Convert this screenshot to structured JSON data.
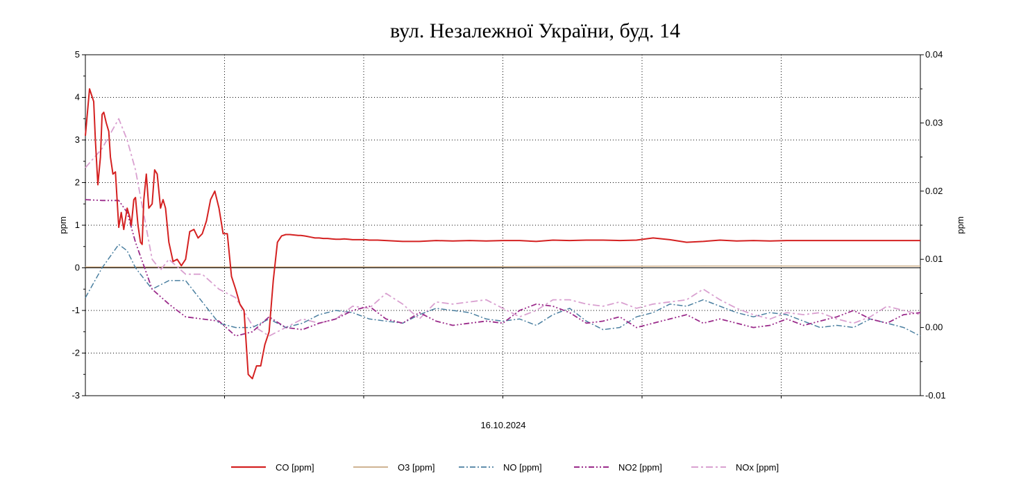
{
  "chart_data": {
    "type": "line",
    "title": "вул. Незалежної України, буд. 14",
    "xlabel": "16.10.2024",
    "ylabel_left": "ppm",
    "ylabel_right": "ppm",
    "y_left": {
      "min": -3,
      "max": 5,
      "ticks": [
        "5",
        "4",
        "3",
        "2",
        "1",
        "0",
        "-1",
        "-2",
        "-3"
      ]
    },
    "y_right": {
      "min": -0.01,
      "max": 0.04,
      "ticks": [
        "0.04",
        "0.03",
        "0.02",
        "0.01",
        "0.00",
        "-0.01"
      ]
    },
    "grid": true,
    "legend_position": "bottom",
    "colors": {
      "CO": "#d42020",
      "O3": "#c8a882",
      "NO": "#4a7fa0",
      "NO2": "#9a2a8a",
      "NOx": "#d9a0d0"
    },
    "series": [
      {
        "name": "CO [ppm]",
        "axis": "left",
        "x": [
          0,
          0.005,
          0.01,
          0.012,
          0.015,
          0.018,
          0.02,
          0.022,
          0.025,
          0.028,
          0.03,
          0.033,
          0.036,
          0.04,
          0.043,
          0.046,
          0.05,
          0.053,
          0.055,
          0.058,
          0.06,
          0.063,
          0.066,
          0.068,
          0.07,
          0.073,
          0.076,
          0.08,
          0.083,
          0.086,
          0.09,
          0.093,
          0.096,
          0.1,
          0.105,
          0.11,
          0.115,
          0.12,
          0.125,
          0.13,
          0.135,
          0.14,
          0.145,
          0.15,
          0.155,
          0.16,
          0.165,
          0.17,
          0.175,
          0.18,
          0.185,
          0.19,
          0.195,
          0.2,
          0.205,
          0.21,
          0.215,
          0.22,
          0.225,
          0.23,
          0.235,
          0.24,
          0.245,
          0.25,
          0.255,
          0.258,
          0.262,
          0.265,
          0.27,
          0.275,
          0.28,
          0.285,
          0.29,
          0.295,
          0.3,
          0.305,
          0.31,
          0.315,
          0.32,
          0.325,
          0.33,
          0.335,
          0.34,
          0.35,
          0.36,
          0.38,
          0.4,
          0.42,
          0.44,
          0.46,
          0.48,
          0.5,
          0.52,
          0.54,
          0.56,
          0.58,
          0.6,
          0.62,
          0.64,
          0.66,
          0.68,
          0.7,
          0.72,
          0.74,
          0.76,
          0.78,
          0.8,
          0.82,
          0.84,
          0.86,
          0.88,
          0.9,
          0.92,
          0.94,
          0.96,
          0.98,
          1.0
        ],
        "values": [
          3.1,
          4.2,
          3.9,
          3.0,
          1.95,
          2.6,
          3.6,
          3.65,
          3.4,
          3.2,
          2.6,
          2.2,
          2.25,
          0.95,
          1.3,
          0.9,
          1.4,
          1.2,
          1.0,
          1.6,
          1.65,
          1.0,
          0.6,
          0.55,
          1.6,
          2.2,
          1.4,
          1.5,
          2.3,
          2.2,
          1.4,
          1.6,
          1.4,
          0.6,
          0.15,
          0.2,
          0.05,
          0.2,
          0.85,
          0.9,
          0.7,
          0.8,
          1.1,
          1.6,
          1.8,
          1.4,
          0.8,
          0.8,
          -0.2,
          -0.5,
          -0.85,
          -1.0,
          -2.5,
          -2.6,
          -2.3,
          -2.3,
          -1.8,
          -1.5,
          -0.3,
          0.6,
          0.75,
          0.78,
          0.78,
          0.77,
          0.76,
          0.76,
          0.75,
          0.74,
          0.72,
          0.7,
          0.7,
          0.69,
          0.69,
          0.68,
          0.67,
          0.67,
          0.68,
          0.67,
          0.66,
          0.66,
          0.66,
          0.66,
          0.65,
          0.65,
          0.64,
          0.62,
          0.62,
          0.64,
          0.63,
          0.64,
          0.63,
          0.64,
          0.64,
          0.62,
          0.65,
          0.64,
          0.65,
          0.65,
          0.64,
          0.65,
          0.7,
          0.66,
          0.6,
          0.62,
          0.65,
          0.63,
          0.64,
          0.63,
          0.64,
          0.64,
          0.64,
          0.64,
          0.64,
          0.64,
          0.64,
          0.64,
          0.64
        ]
      },
      {
        "name": "O3 [ppm]",
        "axis": "left",
        "x": [
          0,
          0.25,
          0.5,
          0.75,
          1.0
        ],
        "values": [
          0.02,
          0.02,
          0.03,
          0.04,
          0.04
        ]
      },
      {
        "name": "NO [ppm]",
        "axis": "left",
        "x": [
          0,
          0.02,
          0.04,
          0.05,
          0.06,
          0.08,
          0.1,
          0.12,
          0.14,
          0.16,
          0.18,
          0.2,
          0.22,
          0.24,
          0.26,
          0.28,
          0.3,
          0.32,
          0.34,
          0.36,
          0.38,
          0.4,
          0.42,
          0.44,
          0.46,
          0.48,
          0.5,
          0.52,
          0.54,
          0.56,
          0.58,
          0.6,
          0.62,
          0.64,
          0.66,
          0.68,
          0.7,
          0.72,
          0.74,
          0.76,
          0.78,
          0.8,
          0.82,
          0.84,
          0.86,
          0.88,
          0.9,
          0.92,
          0.94,
          0.96,
          0.98,
          1.0
        ],
        "values": [
          -0.7,
          0.0,
          0.55,
          0.4,
          0.0,
          -0.5,
          -0.3,
          -0.3,
          -0.8,
          -1.3,
          -1.4,
          -1.4,
          -1.2,
          -1.4,
          -1.3,
          -1.1,
          -1.0,
          -1.05,
          -1.2,
          -1.25,
          -1.3,
          -1.1,
          -0.95,
          -1.0,
          -1.05,
          -1.2,
          -1.25,
          -1.2,
          -1.35,
          -1.1,
          -0.95,
          -1.25,
          -1.45,
          -1.4,
          -1.15,
          -1.05,
          -0.85,
          -0.9,
          -0.75,
          -0.9,
          -1.05,
          -1.15,
          -1.05,
          -1.1,
          -1.25,
          -1.4,
          -1.35,
          -1.4,
          -1.2,
          -1.3,
          -1.4,
          -1.6
        ]
      },
      {
        "name": "NO2 [ppm]",
        "axis": "left",
        "x": [
          0,
          0.02,
          0.04,
          0.05,
          0.06,
          0.08,
          0.1,
          0.12,
          0.14,
          0.16,
          0.18,
          0.2,
          0.22,
          0.24,
          0.26,
          0.28,
          0.3,
          0.32,
          0.34,
          0.36,
          0.38,
          0.4,
          0.42,
          0.44,
          0.46,
          0.48,
          0.5,
          0.52,
          0.54,
          0.56,
          0.58,
          0.6,
          0.62,
          0.64,
          0.66,
          0.68,
          0.7,
          0.72,
          0.74,
          0.76,
          0.78,
          0.8,
          0.82,
          0.84,
          0.86,
          0.88,
          0.9,
          0.92,
          0.94,
          0.96,
          0.98,
          1.0
        ],
        "values": [
          1.6,
          1.58,
          1.58,
          1.3,
          0.6,
          -0.5,
          -0.85,
          -1.15,
          -1.2,
          -1.25,
          -1.6,
          -1.5,
          -1.15,
          -1.4,
          -1.45,
          -1.3,
          -1.2,
          -1.0,
          -0.9,
          -1.2,
          -1.3,
          -1.05,
          -1.25,
          -1.35,
          -1.3,
          -1.25,
          -1.3,
          -1.0,
          -0.85,
          -0.9,
          -1.05,
          -1.3,
          -1.25,
          -1.15,
          -1.4,
          -1.3,
          -1.2,
          -1.1,
          -1.3,
          -1.2,
          -1.3,
          -1.4,
          -1.35,
          -1.2,
          -1.35,
          -1.25,
          -1.15,
          -1.0,
          -1.2,
          -1.3,
          -1.1,
          -1.05
        ]
      },
      {
        "name": "NOx [ppm]",
        "axis": "left",
        "x": [
          0,
          0.02,
          0.04,
          0.05,
          0.06,
          0.08,
          0.09,
          0.1,
          0.12,
          0.14,
          0.16,
          0.18,
          0.2,
          0.22,
          0.24,
          0.26,
          0.28,
          0.3,
          0.32,
          0.34,
          0.36,
          0.38,
          0.4,
          0.42,
          0.44,
          0.46,
          0.48,
          0.5,
          0.52,
          0.54,
          0.56,
          0.58,
          0.6,
          0.62,
          0.64,
          0.66,
          0.68,
          0.7,
          0.72,
          0.74,
          0.76,
          0.78,
          0.8,
          0.82,
          0.84,
          0.86,
          0.88,
          0.9,
          0.92,
          0.94,
          0.96,
          0.98,
          1.0
        ],
        "values": [
          2.35,
          2.8,
          3.5,
          3.0,
          2.3,
          0.2,
          -0.05,
          0.2,
          -0.15,
          -0.15,
          -0.5,
          -0.7,
          -1.35,
          -1.6,
          -1.4,
          -1.2,
          -1.3,
          -1.2,
          -0.9,
          -0.95,
          -0.6,
          -0.85,
          -1.2,
          -0.8,
          -0.85,
          -0.8,
          -0.75,
          -0.95,
          -1.15,
          -1.0,
          -0.75,
          -0.75,
          -0.85,
          -0.9,
          -0.8,
          -0.95,
          -0.85,
          -0.8,
          -0.75,
          -0.5,
          -0.75,
          -0.95,
          -1.1,
          -1.2,
          -1.05,
          -1.1,
          -1.05,
          -1.2,
          -1.3,
          -1.15,
          -0.9,
          -1.0,
          -1.1
        ]
      }
    ]
  }
}
